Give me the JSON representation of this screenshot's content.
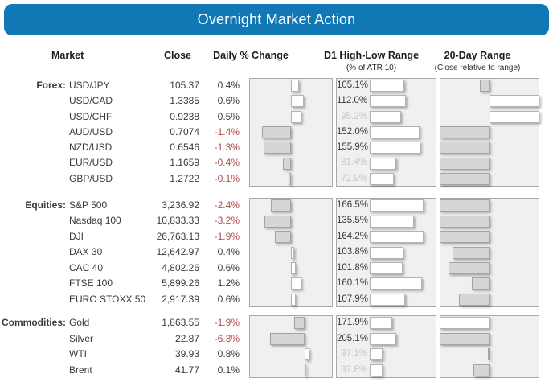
{
  "title": "Overnight Market Action",
  "headers": {
    "market": "Market",
    "close": "Close",
    "daily": "Daily % Change",
    "d1": "D1 High-Low Range",
    "d1_sub": "(% of ATR 10)",
    "day20": "20-Day Range",
    "day20_sub": "(Close relative to range)"
  },
  "colors": {
    "banner_blue": "#1177b5",
    "negative_red": "#b04949",
    "muted_gray": "#c7c7c7",
    "bar_gray": "#d6d6d6",
    "text_dark": "#3a3a3a"
  },
  "chart_data": {
    "type": "bar",
    "title": "Overnight Market Action",
    "columns": [
      "Market",
      "Close",
      "Daily % Change",
      "D1 High-Low Range (% of ATR 10)",
      "20-Day Range (Close relative to range)"
    ],
    "legend_position": "none",
    "grid": false,
    "groups": [
      {
        "label": "Forex:",
        "daily_axis": [
          -2,
          2
        ],
        "d1_axis_max": 200,
        "rows": [
          {
            "market": "USD/JPY",
            "close": "105.37",
            "daily_pct": 0.4,
            "daily_label": "0.4%",
            "d1_pct": 105.1,
            "d1_label": "105.1%",
            "range20_pos": 40,
            "range20_fill": "gray"
          },
          {
            "market": "USD/CAD",
            "close": "1.3385",
            "daily_pct": 0.6,
            "daily_label": "0.6%",
            "d1_pct": 112.0,
            "d1_label": "112.0%",
            "range20_pos": 100,
            "range20_fill": "white"
          },
          {
            "market": "USD/CHF",
            "close": "0.9238",
            "daily_pct": 0.5,
            "daily_label": "0.5%",
            "d1_pct": 95.2,
            "d1_label": "95.2%",
            "range20_pos": 100,
            "range20_fill": "white"
          },
          {
            "market": "AUD/USD",
            "close": "0.7074",
            "daily_pct": -1.4,
            "daily_label": "-1.4%",
            "d1_pct": 152.0,
            "d1_label": "152.0%",
            "range20_pos": 0,
            "range20_fill": "gray"
          },
          {
            "market": "NZD/USD",
            "close": "0.6546",
            "daily_pct": -1.3,
            "daily_label": "-1.3%",
            "d1_pct": 155.9,
            "d1_label": "155.9%",
            "range20_pos": 0,
            "range20_fill": "gray"
          },
          {
            "market": "EUR/USD",
            "close": "1.1659",
            "daily_pct": -0.4,
            "daily_label": "-0.4%",
            "d1_pct": 81.4,
            "d1_label": "81.4%",
            "range20_pos": 0,
            "range20_fill": "gray"
          },
          {
            "market": "GBP/USD",
            "close": "1.2722",
            "daily_pct": -0.1,
            "daily_label": "-0.1%",
            "d1_pct": 72.9,
            "d1_label": "72.9%",
            "range20_pos": 0,
            "range20_fill": "gray"
          }
        ]
      },
      {
        "label": "Equities:",
        "daily_axis": [
          -5,
          5
        ],
        "d1_axis_max": 200,
        "rows": [
          {
            "market": "S&P 500",
            "close": "3,236.92",
            "daily_pct": -2.4,
            "daily_label": "-2.4%",
            "d1_pct": 166.5,
            "d1_label": "166.5%",
            "range20_pos": 0,
            "range20_fill": "gray"
          },
          {
            "market": "Nasdaq 100",
            "close": "10,833.33",
            "daily_pct": -3.2,
            "daily_label": "-3.2%",
            "d1_pct": 135.5,
            "d1_label": "135.5%",
            "range20_pos": 0,
            "range20_fill": "gray"
          },
          {
            "market": "DJI",
            "close": "26,763.13",
            "daily_pct": -1.9,
            "daily_label": "-1.9%",
            "d1_pct": 164.2,
            "d1_label": "164.2%",
            "range20_pos": 0,
            "range20_fill": "gray"
          },
          {
            "market": "DAX 30",
            "close": "12,642.97",
            "daily_pct": 0.4,
            "daily_label": "0.4%",
            "d1_pct": 103.8,
            "d1_label": "103.8%",
            "range20_pos": 13,
            "range20_fill": "gray"
          },
          {
            "market": "CAC 40",
            "close": "4,802.26",
            "daily_pct": 0.6,
            "daily_label": "0.6%",
            "d1_pct": 101.8,
            "d1_label": "101.8%",
            "range20_pos": 9,
            "range20_fill": "gray"
          },
          {
            "market": "FTSE 100",
            "close": "5,899.26",
            "daily_pct": 1.2,
            "daily_label": "1.2%",
            "d1_pct": 160.1,
            "d1_label": "160.1%",
            "range20_pos": 32,
            "range20_fill": "gray"
          },
          {
            "market": "EURO STOXX 50",
            "close": "2,917.39",
            "daily_pct": 0.6,
            "daily_label": "0.6%",
            "d1_pct": 107.9,
            "d1_label": "107.9%",
            "range20_pos": 19,
            "range20_fill": "gray"
          }
        ]
      },
      {
        "label": "Commodities:",
        "daily_axis": [
          -10,
          5
        ],
        "d1_axis_max": 500,
        "rows": [
          {
            "market": "Gold",
            "close": "1,863.55",
            "daily_pct": -1.9,
            "daily_label": "-1.9%",
            "d1_pct": 171.9,
            "d1_label": "171.9%",
            "range20_pos": 0,
            "range20_fill": "white"
          },
          {
            "market": "Silver",
            "close": "22.87",
            "daily_pct": -6.3,
            "daily_label": "-6.3%",
            "d1_pct": 205.1,
            "d1_label": "205.1%",
            "range20_pos": 0,
            "range20_fill": "gray"
          },
          {
            "market": "WTI",
            "close": "39.93",
            "daily_pct": 0.8,
            "daily_label": "0.8%",
            "d1_pct": 97.1,
            "d1_label": "97.1%",
            "range20_pos": 48.5,
            "range20_fill": "gray"
          },
          {
            "market": "Brent",
            "close": "41.77",
            "daily_pct": 0.1,
            "daily_label": "0.1%",
            "d1_pct": 97.8,
            "d1_label": "97.8%",
            "range20_pos": 34,
            "range20_fill": "gray"
          }
        ]
      }
    ]
  }
}
